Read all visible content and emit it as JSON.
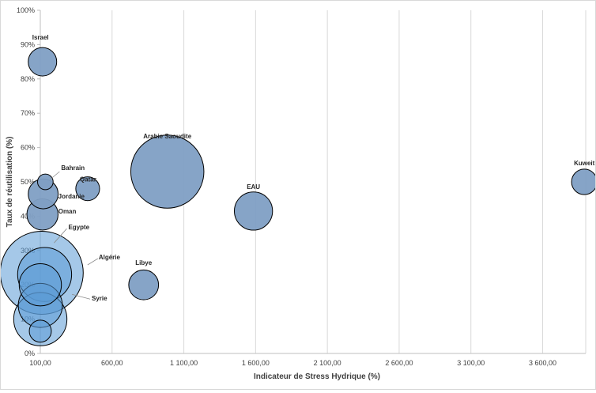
{
  "chart_data": {
    "type": "bubble",
    "title": "",
    "xlabel": "Indicateur de Stress Hydrique (%)",
    "ylabel": "Taux de réutilisation (%)",
    "xlim": [
      100,
      3900
    ],
    "ylim": [
      0,
      1
    ],
    "x_ticks": [
      {
        "value": 100,
        "label": "100,00"
      },
      {
        "value": 600,
        "label": "600,00"
      },
      {
        "value": 1100,
        "label": "1 100,00"
      },
      {
        "value": 1600,
        "label": "1 600,00"
      },
      {
        "value": 2100,
        "label": "2 100,00"
      },
      {
        "value": 2600,
        "label": "2 600,00"
      },
      {
        "value": 3100,
        "label": "3 100,00"
      },
      {
        "value": 3600,
        "label": "3 600,00"
      }
    ],
    "y_ticks": [
      {
        "value": 0.0,
        "label": "0%"
      },
      {
        "value": 0.1,
        "label": "10%"
      },
      {
        "value": 0.2,
        "label": "20%"
      },
      {
        "value": 0.3,
        "label": "30%"
      },
      {
        "value": 0.4,
        "label": "40%"
      },
      {
        "value": 0.5,
        "label": "50%"
      },
      {
        "value": 0.6,
        "label": "60%"
      },
      {
        "value": 0.7,
        "label": "70%"
      },
      {
        "value": 0.8,
        "label": "80%"
      },
      {
        "value": 0.9,
        "label": "90%"
      },
      {
        "value": 1.0,
        "label": "100%"
      }
    ],
    "grid": "vertical",
    "legend": "none",
    "colors": {
      "bubble": "#7f9fc4",
      "bubble_blue": "#5b9bd5",
      "bubble_edge": "#000000",
      "grid": "#d9d9d9",
      "axis": "#bfbfbf",
      "label": "#262626"
    },
    "series": [
      {
        "label": "Israel",
        "x": 115,
        "y": 0.85,
        "size": 1.0
      },
      {
        "label": "Bahrain",
        "x": 135,
        "y": 0.5,
        "size": 0.3
      },
      {
        "label": "Qatar",
        "x": 430,
        "y": 0.48,
        "size": 0.7
      },
      {
        "label": "Jordanie",
        "x": 120,
        "y": 0.465,
        "size": 1.1
      },
      {
        "label": "Oman",
        "x": 115,
        "y": 0.405,
        "size": 1.2
      },
      {
        "label": "Egypte",
        "x": 130,
        "y": 0.23,
        "size": 3.6
      },
      {
        "label": "Algérie",
        "x": 110,
        "y": 0.235,
        "size": 8.5
      },
      {
        "label": "Syrie",
        "x": 100,
        "y": 0.2,
        "size": 2.2
      },
      {
        "label": "",
        "x": 100,
        "y": 0.14,
        "size": 2.4
      },
      {
        "label": "",
        "x": 100,
        "y": 0.1,
        "size": 3.5
      },
      {
        "label": "",
        "x": 100,
        "y": 0.065,
        "size": 0.6
      },
      {
        "label": "Libye",
        "x": 820,
        "y": 0.2,
        "size": 1.1
      },
      {
        "label": "Arabie Saoudite",
        "x": 985,
        "y": 0.53,
        "size": 6.6
      },
      {
        "label": "EAU",
        "x": 1585,
        "y": 0.415,
        "size": 1.8
      },
      {
        "label": "Kuweit",
        "x": 3890,
        "y": 0.5,
        "size": 0.8
      }
    ]
  }
}
